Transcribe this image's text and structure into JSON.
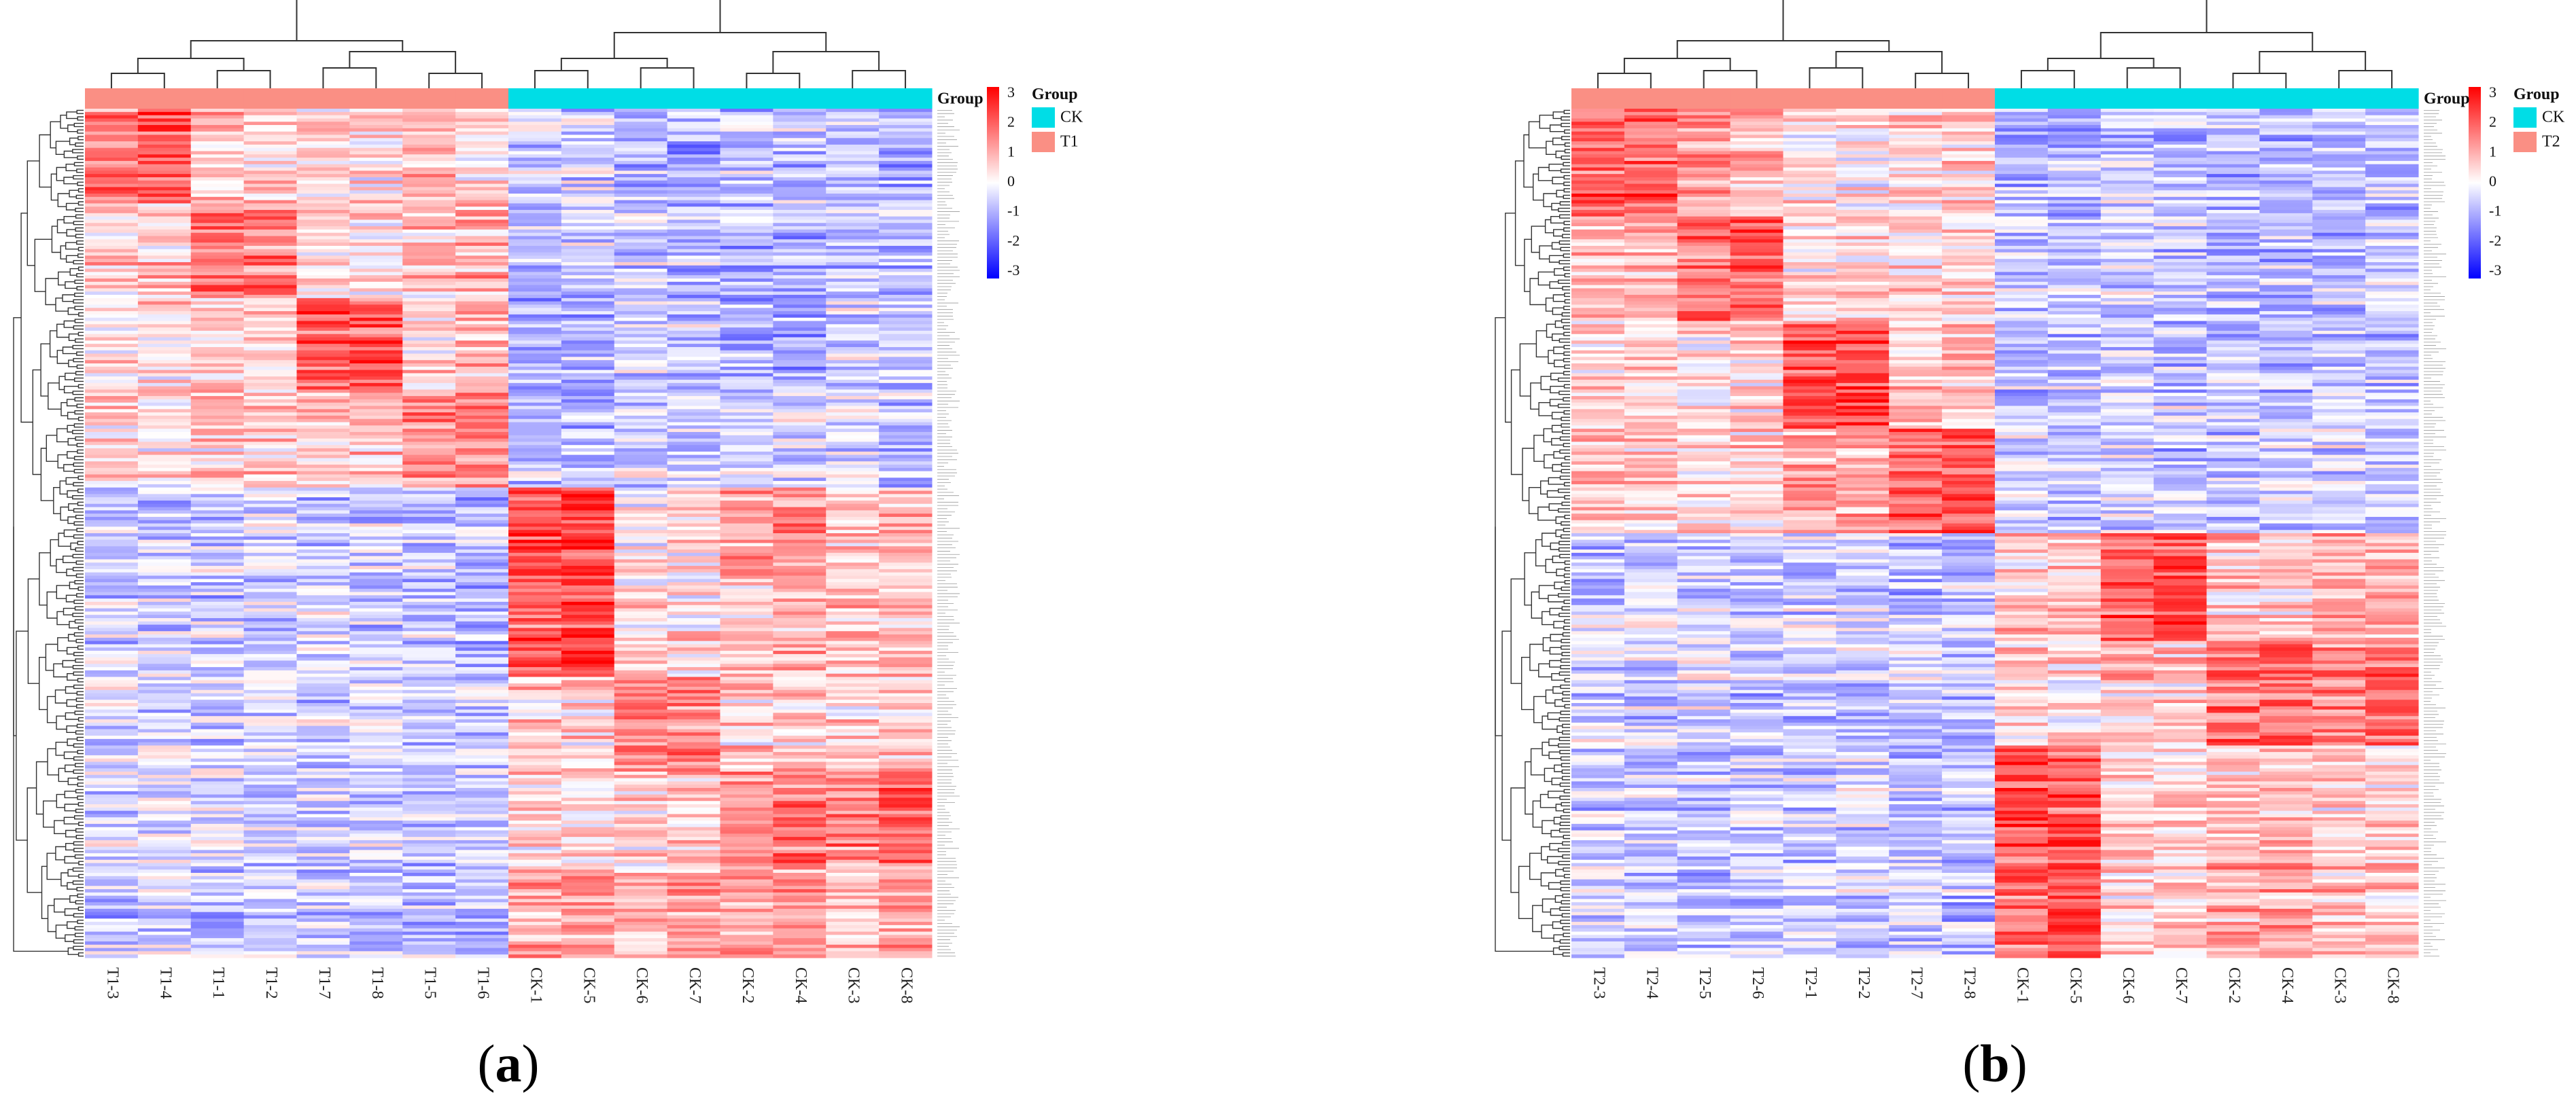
{
  "colors": {
    "low": "#0000ff",
    "mid": "#ffffff",
    "high": "#ff0000",
    "ck_group": "#00dde6",
    "treatment_group": "#fa8f84",
    "dendrogram": "#333333"
  },
  "chart_data": [
    {
      "type": "heatmap",
      "panel_label": "a",
      "group_legend_title": "Group",
      "groups": [
        {
          "name": "CK",
          "color": "#00dde6"
        },
        {
          "name": "T1",
          "color": "#fa8f84"
        }
      ],
      "columns": [
        "T1-3",
        "T1-4",
        "T1-1",
        "T1-2",
        "T1-7",
        "T1-8",
        "T1-5",
        "T1-6",
        "CK-1",
        "CK-5",
        "CK-6",
        "CK-7",
        "CK-2",
        "CK-4",
        "CK-3",
        "CK-8"
      ],
      "column_groups": [
        "T1",
        "T1",
        "T1",
        "T1",
        "T1",
        "T1",
        "T1",
        "T1",
        "CK",
        "CK",
        "CK",
        "CK",
        "CK",
        "CK",
        "CK",
        "CK"
      ],
      "color_scale": {
        "min": -3,
        "max": 3,
        "ticks": [
          "3",
          "2",
          "1",
          "0",
          "-1",
          "-2",
          "-3"
        ]
      },
      "row_count": 260,
      "pattern": [
        [
          1.6,
          2.0,
          0.6,
          0.4,
          0.5,
          0.3,
          0.9,
          0.3,
          -0.6,
          -0.4,
          -0.9,
          -1.0,
          -0.6,
          -0.7,
          -0.7,
          -0.9
        ],
        [
          0.5,
          0.6,
          1.7,
          1.5,
          0.3,
          0.3,
          0.6,
          0.9,
          -0.7,
          -0.6,
          -0.6,
          -0.7,
          -0.9,
          -1.0,
          -0.6,
          -0.8
        ],
        [
          0.3,
          0.4,
          0.7,
          0.6,
          1.9,
          2.0,
          0.4,
          0.9,
          -0.9,
          -0.9,
          -0.5,
          -0.6,
          -0.8,
          -0.8,
          -0.5,
          -0.6
        ],
        [
          0.4,
          0.2,
          0.5,
          0.5,
          0.6,
          0.7,
          1.3,
          1.5,
          -0.6,
          -0.8,
          -0.4,
          -0.5,
          -0.5,
          -0.5,
          -0.4,
          -0.5
        ],
        [
          -0.6,
          -0.6,
          -0.5,
          -0.5,
          -0.6,
          -0.5,
          -0.7,
          -0.8,
          2.1,
          2.2,
          0.1,
          0.2,
          1.2,
          1.3,
          0.5,
          0.7
        ],
        [
          -0.5,
          -0.4,
          -0.6,
          -0.5,
          -0.4,
          -0.6,
          -0.7,
          -0.9,
          1.9,
          2.3,
          0.3,
          0.4,
          0.6,
          0.9,
          0.7,
          0.7
        ],
        [
          -0.3,
          -0.4,
          -0.5,
          -0.4,
          -0.5,
          -0.4,
          -0.6,
          -0.6,
          0.6,
          0.5,
          1.5,
          1.4,
          0.5,
          0.6,
          0.4,
          0.6
        ],
        [
          -0.5,
          -0.5,
          -0.4,
          -0.5,
          -0.6,
          -0.6,
          -0.7,
          -0.7,
          0.4,
          0.2,
          0.4,
          0.6,
          1.2,
          1.6,
          1.4,
          1.9
        ],
        [
          -0.6,
          -0.5,
          -0.6,
          -0.5,
          -0.5,
          -0.6,
          -0.8,
          -0.8,
          1.0,
          1.1,
          0.7,
          0.9,
          0.9,
          1.2,
          0.8,
          1.0
        ]
      ]
    },
    {
      "type": "heatmap",
      "panel_label": "b",
      "group_legend_title": "Group",
      "groups": [
        {
          "name": "CK",
          "color": "#00dde6"
        },
        {
          "name": "T2",
          "color": "#fa8f84"
        }
      ],
      "columns": [
        "T2-3",
        "T2-4",
        "T2-5",
        "T2-6",
        "T2-1",
        "T2-2",
        "T2-7",
        "T2-8",
        "CK-1",
        "CK-5",
        "CK-6",
        "CK-7",
        "CK-2",
        "CK-4",
        "CK-3",
        "CK-8"
      ],
      "column_groups": [
        "T2",
        "T2",
        "T2",
        "T2",
        "T2",
        "T2",
        "T2",
        "T2",
        "CK",
        "CK",
        "CK",
        "CK",
        "CK",
        "CK",
        "CK",
        "CK"
      ],
      "color_scale": {
        "min": -3,
        "max": 3,
        "ticks": [
          "3",
          "2",
          "1",
          "0",
          "-1",
          "-2",
          "-3"
        ]
      },
      "row_count": 260,
      "pattern": [
        [
          1.8,
          2.0,
          1.2,
          1.0,
          0.3,
          0.2,
          0.5,
          0.6,
          -0.7,
          -0.8,
          -0.5,
          -0.6,
          -0.8,
          -0.7,
          -0.6,
          -0.7
        ],
        [
          0.9,
          0.8,
          1.6,
          1.8,
          0.4,
          0.5,
          0.4,
          0.3,
          -0.6,
          -0.8,
          -0.6,
          -0.5,
          -0.9,
          -0.8,
          -0.7,
          -0.6
        ],
        [
          0.5,
          0.6,
          0.3,
          0.4,
          2.0,
          2.2,
          0.6,
          0.7,
          -0.8,
          -0.7,
          -0.5,
          -0.6,
          -0.7,
          -0.8,
          -0.6,
          -0.7
        ],
        [
          0.8,
          0.7,
          0.5,
          0.6,
          1.0,
          0.9,
          1.8,
          1.9,
          -0.5,
          -0.6,
          -0.6,
          -0.7,
          -0.6,
          -0.5,
          -0.5,
          -0.6
        ],
        [
          -0.6,
          -0.5,
          -0.6,
          -0.7,
          -0.5,
          -0.6,
          -0.7,
          -0.6,
          0.5,
          0.7,
          1.9,
          2.1,
          0.6,
          0.5,
          0.9,
          0.8
        ],
        [
          -0.5,
          -0.6,
          -0.5,
          -0.6,
          -0.6,
          -0.5,
          -0.6,
          -0.7,
          0.4,
          0.3,
          0.6,
          0.5,
          1.6,
          1.8,
          1.4,
          1.7
        ],
        [
          -0.6,
          -0.7,
          -0.5,
          -0.6,
          -0.6,
          -0.5,
          -0.7,
          -0.6,
          2.2,
          2.0,
          0.4,
          0.5,
          0.7,
          0.6,
          0.4,
          0.5
        ],
        [
          -0.5,
          -0.6,
          -0.7,
          -0.6,
          -0.5,
          -0.6,
          -0.6,
          -0.7,
          1.6,
          2.2,
          0.5,
          0.6,
          1.0,
          0.9,
          0.6,
          0.7
        ]
      ]
    }
  ]
}
